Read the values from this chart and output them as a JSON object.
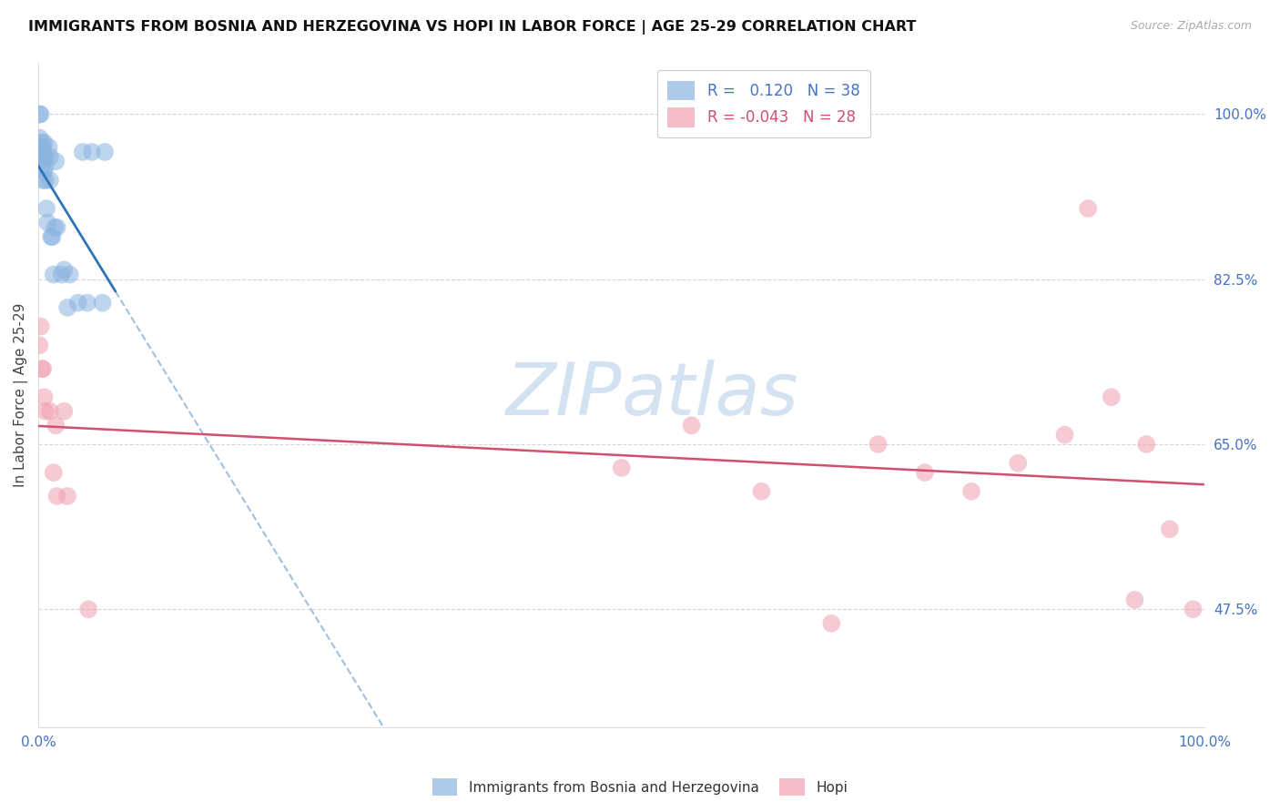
{
  "title": "IMMIGRANTS FROM BOSNIA AND HERZEGOVINA VS HOPI IN LABOR FORCE | AGE 25-29 CORRELATION CHART",
  "source": "Source: ZipAtlas.com",
  "ylabel": "In Labor Force | Age 25-29",
  "y_ticks": [
    0.475,
    0.65,
    0.825,
    1.0
  ],
  "y_tick_labels": [
    "47.5%",
    "65.0%",
    "82.5%",
    "100.0%"
  ],
  "blue_color": "#8ab4e0",
  "pink_color": "#f0a0b0",
  "blue_line_color": "#2e75b6",
  "pink_line_color": "#d05070",
  "watermark_color": "#ccddf0",
  "blue_points_x": [
    0.001,
    0.001,
    0.001,
    0.002,
    0.002,
    0.003,
    0.003,
    0.003,
    0.004,
    0.004,
    0.004,
    0.005,
    0.005,
    0.005,
    0.006,
    0.006,
    0.006,
    0.007,
    0.008,
    0.009,
    0.01,
    0.01,
    0.011,
    0.012,
    0.013,
    0.014,
    0.015,
    0.016,
    0.02,
    0.022,
    0.025,
    0.027,
    0.034,
    0.038,
    0.042,
    0.046,
    0.055,
    0.057
  ],
  "blue_points_y": [
    1.0,
    0.975,
    0.955,
    1.0,
    0.965,
    0.97,
    0.96,
    0.945,
    0.965,
    0.96,
    0.93,
    0.97,
    0.955,
    0.94,
    0.955,
    0.945,
    0.93,
    0.9,
    0.885,
    0.965,
    0.955,
    0.93,
    0.87,
    0.87,
    0.83,
    0.88,
    0.95,
    0.88,
    0.83,
    0.835,
    0.795,
    0.83,
    0.8,
    0.96,
    0.8,
    0.96,
    0.8,
    0.96
  ],
  "pink_points_x": [
    0.001,
    0.002,
    0.003,
    0.004,
    0.005,
    0.006,
    0.01,
    0.013,
    0.015,
    0.016,
    0.022,
    0.025,
    0.043,
    0.5,
    0.56,
    0.62,
    0.68,
    0.72,
    0.76,
    0.8,
    0.84,
    0.88,
    0.9,
    0.92,
    0.94,
    0.95,
    0.97,
    0.99
  ],
  "pink_points_y": [
    0.755,
    0.775,
    0.73,
    0.73,
    0.7,
    0.685,
    0.685,
    0.62,
    0.67,
    0.595,
    0.685,
    0.595,
    0.475,
    0.625,
    0.67,
    0.6,
    0.46,
    0.65,
    0.62,
    0.6,
    0.63,
    0.66,
    0.9,
    0.7,
    0.485,
    0.65,
    0.56,
    0.475
  ],
  "xlim": [
    0.0,
    1.0
  ],
  "ylim": [
    0.35,
    1.055
  ],
  "legend_blue_r": "0.120",
  "legend_blue_n": "38",
  "legend_pink_r": "-0.043",
  "legend_pink_n": "28"
}
